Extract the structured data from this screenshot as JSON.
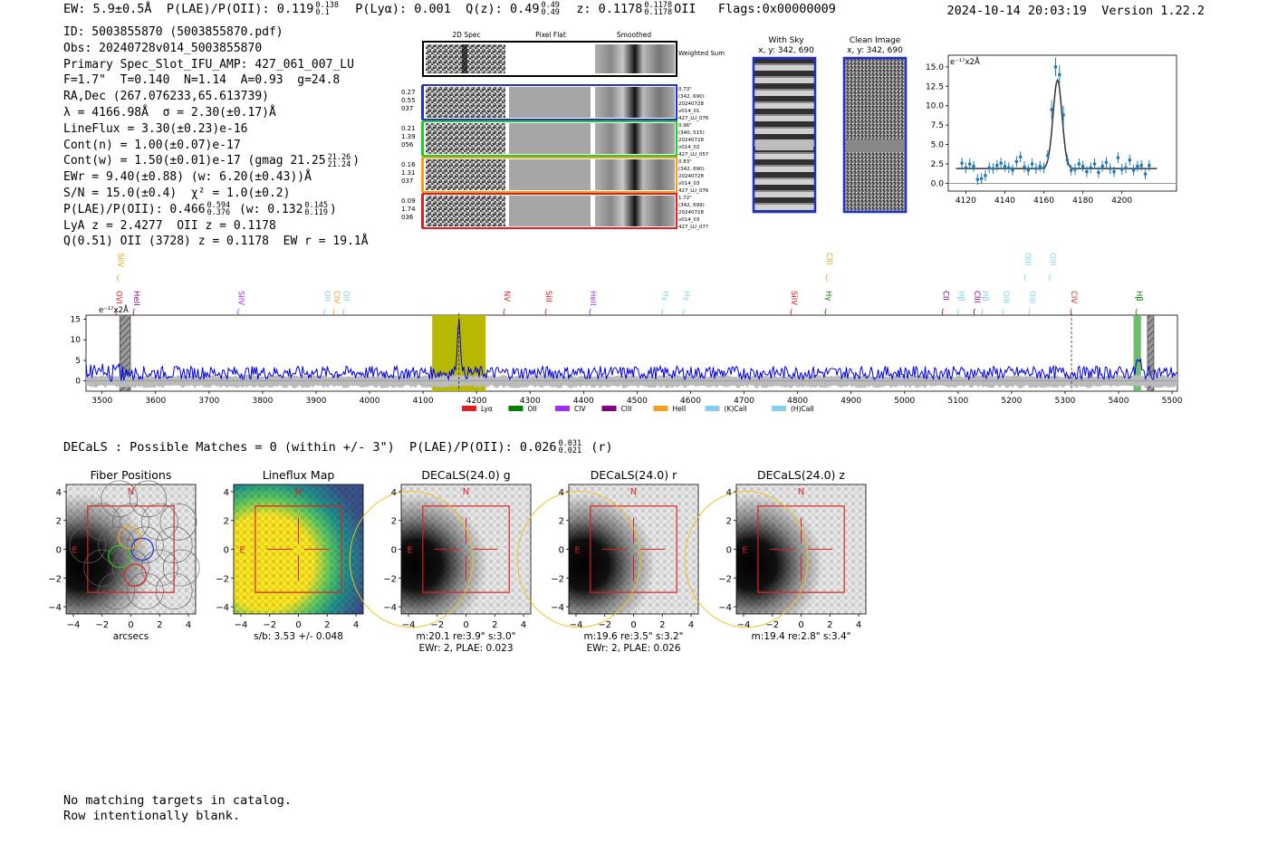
{
  "header": {
    "ew": "EW: 5.9±0.5",
    "ew_unit": "Å",
    "plae_label": "P(LAE)/P(OII): 0.119",
    "plae_hi": "0.138",
    "plae_lo": "0.1",
    "plya": "P(Lyα): 0.001",
    "qz": "Q(z): 0.49",
    "qz_hi": "0.49",
    "qz_lo": "0.49",
    "z": "z: 0.1178",
    "z_hi": "0.1178",
    "z_lo": "0.1178",
    "z_line": "OII",
    "flags": "Flags:0x00000009",
    "timestamp": "2024-10-14 20:03:19",
    "version": "Version 1.22.2"
  },
  "info": {
    "id": "ID: 5003855870 (5003855870.pdf)",
    "obs": "Obs: 20240728v014_5003855870",
    "primary": "Primary Spec_Slot_IFU_AMP: 427_061_007_LU",
    "fwhm": "F=1.7\"  T=0.140  N=1.14  A=0.93  g=24.8",
    "radec": "RA,Dec (267.076233,65.613739)",
    "lambda": "λ = 4166.98Å  σ = 2.30(±0.17)Å",
    "lineflux": "LineFlux = 3.30(±0.23)e-16",
    "cont_n": "Cont(n) = 1.00(±0.07)e-17",
    "cont_w": "Cont(w) = 1.50(±0.01)e-17 (gmag 21.25",
    "gmag_hi": "21.26",
    "gmag_lo": "21.24",
    "cont_w_end": ")",
    "ewr": "EWr = 9.40(±0.88) (w: 6.20(±0.43))Å",
    "sn": "S/N = 15.0(±0.4)  χ² = 1.0(±0.2)",
    "plae": "P(LAE)/P(OII): 0.466",
    "plae_hi": "0.594",
    "plae_lo": "0.376",
    "plae_w": " (w: 0.132",
    "plae_w_hi": "0.145",
    "plae_w_lo": "0.119",
    "plae_w_end": ")",
    "lya": "LyA z = 2.4277  OII z = 0.1178",
    "q": "Q(0.51) OII (3728) z = 0.1178  EW r = 19.1Å"
  },
  "fiber_panel": {
    "col_2d": "2D Spec",
    "col_flat": "Pixel Flat",
    "col_smooth": "Smoothed",
    "weighted_sum": "Weighted Sum",
    "rows": [
      {
        "left": [
          "0.27",
          "0.55",
          "037"
        ],
        "right": [
          "0.73\"",
          "(342, 690)",
          "20240728",
          "v014_01",
          "427_LU_076"
        ],
        "color": "#1f2fd0"
      },
      {
        "left": [
          "0.21",
          "1.39",
          "056"
        ],
        "right": [
          "0.96\"",
          "(340, 515)",
          "20240728",
          "v014_02",
          "427_LU_057"
        ],
        "color": "#22cc22"
      },
      {
        "left": [
          "0.16",
          "1.31",
          "037"
        ],
        "right": [
          "0.83\"",
          "(342, 690)",
          "20240728",
          "v014_03",
          "427_LU_076"
        ],
        "color": "#f0a020"
      },
      {
        "left": [
          "0.09",
          "1.74",
          "036"
        ],
        "right": [
          "1.72\"",
          "(342, 699)",
          "20240728",
          "v014_03",
          "427_LU_077"
        ],
        "color": "#e02020"
      }
    ]
  },
  "sky_panel": {
    "with_sky": "With Sky",
    "clean": "Clean Image",
    "coords_sky": "x, y: 342, 690",
    "coords_clean": "x, y: 342, 690"
  },
  "colors": {
    "spectrum": "#0000dd",
    "error_band": "#bbbbbb",
    "highlight": "#b8b800",
    "zoom_points": "#1f77b4",
    "fit_line": "#333333",
    "frame_blue": "#1f2fd0",
    "red_box": "#e02020"
  },
  "chart_data": [
    {
      "type": "line",
      "title": "",
      "ylabel_unit": "e⁻¹⁷x2Å",
      "xlim": [
        3470,
        5510
      ],
      "ylim": [
        -2.5,
        16
      ],
      "xticks": [
        3500,
        3600,
        3700,
        3800,
        3900,
        4000,
        4100,
        4200,
        4300,
        4400,
        4500,
        4600,
        4700,
        4800,
        4900,
        5000,
        5100,
        5200,
        5300,
        5400,
        5500
      ],
      "yticks": [
        0,
        5,
        10,
        15
      ],
      "highlight_region": [
        4117,
        4217
      ],
      "peak_wavelength": 4167,
      "peak_value": 15.2,
      "continuum_level": 2.0,
      "dashed_lines": [
        4167,
        5312
      ],
      "hatched_regions": [
        [
          3533,
          3553
        ],
        [
          5454,
          5466
        ]
      ],
      "green_region": [
        5428,
        5442
      ],
      "lines": [
        {
          "name": "SiIV",
          "wave": 3530,
          "color": "#f0a020",
          "row": "top"
        },
        {
          "name": "OVI",
          "wave": 3527,
          "color": "#e02020",
          "row": "mid"
        },
        {
          "name": "HeII",
          "wave": 3560,
          "color": "#800080",
          "row": "mid"
        },
        {
          "name": "SiIV",
          "wave": 3755,
          "color": "#9b30ff",
          "row": "mid"
        },
        {
          "name": "OII",
          "wave": 3916,
          "color": "#87ceeb",
          "row": "mid"
        },
        {
          "name": "CIV",
          "wave": 3934,
          "color": "#f0a020",
          "row": "mid"
        },
        {
          "name": "OII",
          "wave": 3952,
          "color": "#87ceeb",
          "row": "mid"
        },
        {
          "name": "NV",
          "wave": 4252,
          "color": "#e02020",
          "row": "mid"
        },
        {
          "name": "SiII",
          "wave": 4330,
          "color": "#e02020",
          "row": "mid"
        },
        {
          "name": "HeII",
          "wave": 4413,
          "color": "#9b30ff",
          "row": "mid"
        },
        {
          "name": "Hγ",
          "wave": 4548,
          "color": "#87ceeb",
          "row": "mid"
        },
        {
          "name": "Hγ",
          "wave": 4588,
          "color": "#87ceeb",
          "row": "mid"
        },
        {
          "name": "CIII",
          "wave": 4855,
          "color": "#f0a020",
          "row": "top"
        },
        {
          "name": "SiIV",
          "wave": 4789,
          "color": "#e02020",
          "row": "mid"
        },
        {
          "name": "Hγ",
          "wave": 4853,
          "color": "#008000",
          "row": "mid"
        },
        {
          "name": "CII",
          "wave": 5072,
          "color": "#800080",
          "row": "mid"
        },
        {
          "name": "Hβ",
          "wave": 5101,
          "color": "#87ceeb",
          "row": "mid"
        },
        {
          "name": "CIII",
          "wave": 5131,
          "color": "#800080",
          "row": "mid"
        },
        {
          "name": "Hβ",
          "wave": 5146,
          "color": "#87ceeb",
          "row": "mid"
        },
        {
          "name": "OIII",
          "wave": 5185,
          "color": "#87ceeb",
          "row": "mid"
        },
        {
          "name": "OIII",
          "wave": 5226,
          "color": "#87ceeb",
          "row": "top"
        },
        {
          "name": "OIII",
          "wave": 5234,
          "color": "#87ceeb",
          "row": "mid"
        },
        {
          "name": "OIII",
          "wave": 5272,
          "color": "#87ceeb",
          "row": "top"
        },
        {
          "name": "CIV",
          "wave": 5312,
          "color": "#e02020",
          "row": "mid"
        },
        {
          "name": "Hβ",
          "wave": 5434,
          "color": "#008000",
          "row": "mid"
        }
      ],
      "legend": [
        {
          "name": "Lyα",
          "color": "#e02020"
        },
        {
          "name": "OII",
          "color": "#008000"
        },
        {
          "name": "CIV",
          "color": "#9b30ff"
        },
        {
          "name": "CIII",
          "color": "#800080"
        },
        {
          "name": "HeII",
          "color": "#f0a020"
        },
        {
          "name": "(K)CaII",
          "color": "#87ceeb"
        },
        {
          "name": "(H)CaII",
          "color": "#87ceeb"
        }
      ]
    },
    {
      "type": "scatter",
      "ylabel_unit": "e⁻¹⁷x2Å",
      "xlim": [
        4111,
        4228
      ],
      "ylim": [
        -1,
        16.5
      ],
      "xticks": [
        4120,
        4140,
        4160,
        4180,
        4200
      ],
      "yticks": [
        0.0,
        2.5,
        5.0,
        7.5,
        10.0,
        12.5,
        15.0
      ],
      "fit_center": 4167,
      "fit_sigma": 2.3,
      "fit_amplitude": 11.4,
      "fit_continuum": 1.9,
      "points": [
        [
          4118,
          2.6
        ],
        [
          4120,
          2.0
        ],
        [
          4122,
          2.5
        ],
        [
          4124,
          2.2
        ],
        [
          4126,
          0.5
        ],
        [
          4128,
          0.6
        ],
        [
          4130,
          1.0
        ],
        [
          4132,
          2.0
        ],
        [
          4134,
          1.9
        ],
        [
          4136,
          2.3
        ],
        [
          4138,
          2.6
        ],
        [
          4140,
          2.2
        ],
        [
          4142,
          2.0
        ],
        [
          4144,
          1.7
        ],
        [
          4146,
          2.8
        ],
        [
          4148,
          3.4
        ],
        [
          4150,
          2.1
        ],
        [
          4152,
          1.7
        ],
        [
          4154,
          2.5
        ],
        [
          4156,
          1.9
        ],
        [
          4158,
          2.2
        ],
        [
          4160,
          2.0
        ],
        [
          4162,
          3.6
        ],
        [
          4164,
          9.5
        ],
        [
          4166,
          15.0
        ],
        [
          4168,
          14.0
        ],
        [
          4170,
          8.8
        ],
        [
          4172,
          3.0
        ],
        [
          4174,
          1.7
        ],
        [
          4176,
          1.8
        ],
        [
          4178,
          2.5
        ],
        [
          4180,
          2.2
        ],
        [
          4182,
          1.5
        ],
        [
          4184,
          2.0
        ],
        [
          4186,
          2.5
        ],
        [
          4188,
          1.4
        ],
        [
          4190,
          2.2
        ],
        [
          4192,
          2.7
        ],
        [
          4194,
          1.9
        ],
        [
          4196,
          1.5
        ],
        [
          4198,
          3.3
        ],
        [
          4200,
          1.8
        ],
        [
          4202,
          2.0
        ],
        [
          4204,
          3.0
        ],
        [
          4206,
          1.7
        ],
        [
          4208,
          2.2
        ],
        [
          4210,
          2.3
        ],
        [
          4212,
          1.2
        ],
        [
          4214,
          2.3
        ]
      ]
    },
    {
      "type": "heatmap",
      "panels": [
        {
          "title": "Fiber Positions",
          "caption": "arcsecs",
          "caption2": ""
        },
        {
          "title": "Lineflux Map",
          "caption": "s/b: 3.53 +/- 0.048",
          "caption2": ""
        },
        {
          "title": "DECaLS(24.0) g",
          "caption": "m:20.1  re:3.9\"  s:3.0\"",
          "caption2": "EWr: 2, PLAE: 0.023"
        },
        {
          "title": "DECaLS(24.0) r",
          "caption": "m:19.6  re:3.5\"  s:3.2\"",
          "caption2": "EWr: 2, PLAE: 0.026"
        },
        {
          "title": "DECaLS(24.0) z",
          "caption": "m:19.4  re:2.8\"  s:3.4\"",
          "caption2": ""
        }
      ],
      "xlim": [
        -4.5,
        4.5
      ],
      "ylim": [
        -4.5,
        4.5
      ],
      "ticks": [
        -4,
        -2,
        0,
        2,
        4
      ],
      "compass_n": "N",
      "compass_e": "E"
    }
  ],
  "decals": {
    "text": "DECaLS : Possible Matches = 0 (within +/- 3\")  P(LAE)/P(OII): 0.026",
    "hi": "0.031",
    "lo": "0.021",
    "band": "(r)"
  },
  "bottom": {
    "line1": "No matching targets in catalog.",
    "line2": "Row intentionally blank."
  }
}
